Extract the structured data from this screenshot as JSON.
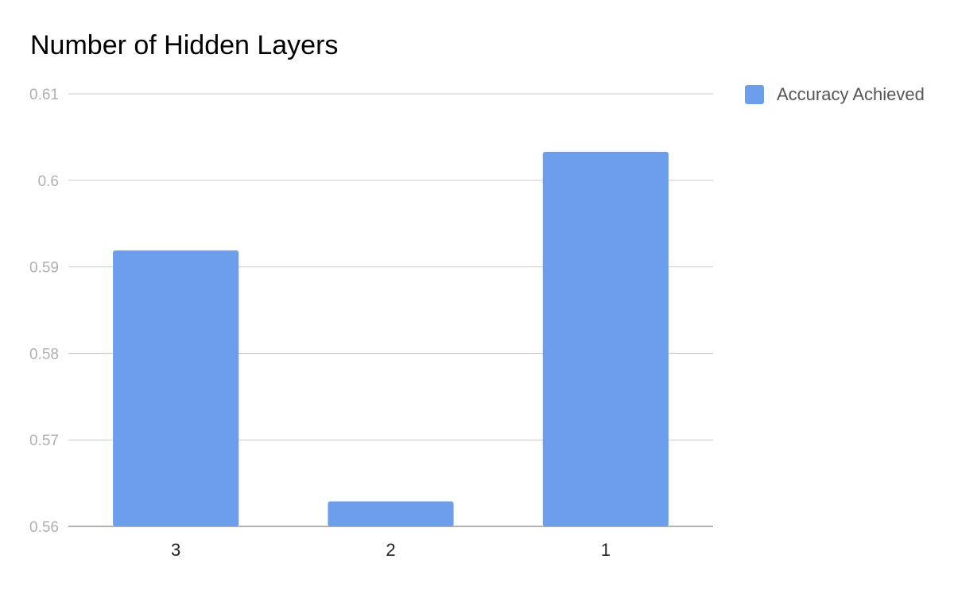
{
  "chart_data": {
    "type": "bar",
    "title": "Number of Hidden Layers",
    "categories": [
      "3",
      "2",
      "1"
    ],
    "series": [
      {
        "name": "Accuracy Achieved",
        "values": [
          0.5919,
          0.5629,
          0.6033
        ],
        "color": "#6d9eeb"
      }
    ],
    "yticks": [
      "0.56",
      "0.57",
      "0.58",
      "0.59",
      "0.6",
      "0.61"
    ],
    "ylim": [
      0.56,
      0.61
    ],
    "grid": true,
    "legend_position": "right"
  }
}
